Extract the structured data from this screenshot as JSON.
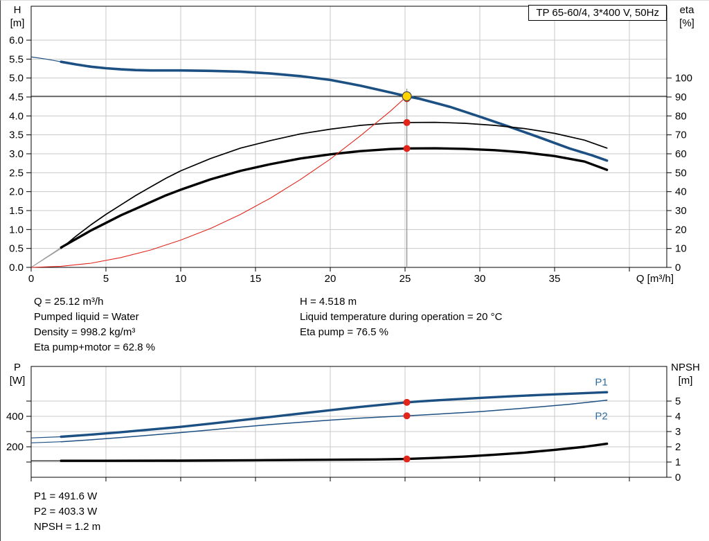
{
  "header": {
    "title_box": "TP 65-60/4, 3*400 V, 50Hz"
  },
  "colors": {
    "curve_blue": "#1c4f82",
    "label_blue": "#2d6ca2",
    "red": "#e1251b",
    "yellow": "#ffd400",
    "black": "#000000",
    "grid": "#c9c9c9",
    "lead": "#9a9a9a"
  },
  "top_chart": {
    "corner_left": {
      "title": "H",
      "unit": "[m]"
    },
    "corner_right": {
      "title": "eta",
      "unit": "[%]"
    },
    "x_axis_label": "Q [m³/h]",
    "left_ticks": [
      {
        "v": 6.0,
        "t": "6.0"
      },
      {
        "v": 5.5,
        "t": "5.5"
      },
      {
        "v": 5.0,
        "t": "5.0"
      },
      {
        "v": 4.5,
        "t": "4.5"
      },
      {
        "v": 4.0,
        "t": "4.0"
      },
      {
        "v": 3.5,
        "t": "3.5"
      },
      {
        "v": 3.0,
        "t": "3.0"
      },
      {
        "v": 2.5,
        "t": "2.5"
      },
      {
        "v": 2.0,
        "t": "2.0"
      },
      {
        "v": 1.5,
        "t": "1.5"
      },
      {
        "v": 1.0,
        "t": "1.0"
      },
      {
        "v": 0.5,
        "t": "0.5"
      },
      {
        "v": 0.0,
        "t": "0.0"
      }
    ],
    "right_ticks": [
      {
        "v": 100,
        "t": "100"
      },
      {
        "v": 90,
        "t": "90"
      },
      {
        "v": 80,
        "t": "80"
      },
      {
        "v": 70,
        "t": "70"
      },
      {
        "v": 60,
        "t": "60"
      },
      {
        "v": 50,
        "t": "50"
      },
      {
        "v": 40,
        "t": "40"
      },
      {
        "v": 30,
        "t": "30"
      },
      {
        "v": 20,
        "t": "20"
      },
      {
        "v": 10,
        "t": "10"
      },
      {
        "v": 0,
        "t": "0"
      }
    ],
    "x_ticks": [
      {
        "v": 0,
        "t": "0"
      },
      {
        "v": 5,
        "t": "5"
      },
      {
        "v": 10,
        "t": "10"
      },
      {
        "v": 15,
        "t": "15"
      },
      {
        "v": 20,
        "t": "20"
      },
      {
        "v": 25,
        "t": "25"
      },
      {
        "v": 30,
        "t": "30"
      },
      {
        "v": 35,
        "t": "35"
      }
    ]
  },
  "bottom_chart": {
    "corner_left": {
      "title": "P",
      "unit": "[W]"
    },
    "corner_right": {
      "title": "NPSH",
      "unit": "[m]"
    },
    "left_ticks": [
      {
        "v": 400,
        "t": "400"
      },
      {
        "v": 200,
        "t": "200"
      }
    ],
    "right_ticks": [
      {
        "v": 5,
        "t": "5"
      },
      {
        "v": 4,
        "t": "4"
      },
      {
        "v": 3,
        "t": "3"
      },
      {
        "v": 2,
        "t": "2"
      },
      {
        "v": 1,
        "t": "1"
      },
      {
        "v": 0,
        "t": "0"
      }
    ],
    "x_ticks": [],
    "curve_labels": [
      {
        "t": "P1",
        "q": 37.7,
        "axis": "P",
        "v": 625
      },
      {
        "t": "P2",
        "q": 37.7,
        "axis": "P",
        "v": 402
      }
    ]
  },
  "info_top": {
    "col1": [
      "Q = 25.12 m³/h",
      "Pumped liquid = Water",
      "Density = 998.2 kg/m³",
      "Eta pump+motor = 62.8 %"
    ],
    "col2": [
      "H = 4.518 m",
      "Liquid temperature during operation = 20 °C",
      "Eta pump = 76.5 %"
    ]
  },
  "info_bottom": [
    "P1 = 491.6 W",
    "P2 = 403.3 W",
    "NPSH = 1.2 m"
  ],
  "chart_data": [
    {
      "type": "line",
      "title": "TP 65-60/4, 3*400 V, 50Hz",
      "xlabel": "Q [m³/h]",
      "ylabel_left": "H [m]",
      "ylabel_right": "eta [%]",
      "x_range": [
        0,
        42.5
      ],
      "y_left_range": [
        0,
        6.9
      ],
      "y_right_range": [
        0,
        138
      ],
      "grid": true,
      "operating_point": {
        "Q_m3h": 25.12,
        "H_m": 4.518,
        "eta_pump_pct": 76.5,
        "eta_pump_motor_pct": 62.8
      },
      "crosshair": {
        "h_axis": "H",
        "h_value": 4.518,
        "v_value": 25.12
      },
      "duty_point": {
        "Q": 25.12,
        "H": 4.518
      },
      "markers": [
        {
          "q": 25.12,
          "axis": "eta",
          "v": 76.5
        },
        {
          "q": 25.12,
          "axis": "eta",
          "v": 62.8
        }
      ],
      "series": [
        {
          "name": "head-curve",
          "axis": "H",
          "color": "curve_blue",
          "w": 3.6,
          "thin_until": 2,
          "points": [
            [
              0,
              5.56
            ],
            [
              1,
              5.5
            ],
            [
              2,
              5.43
            ],
            [
              3,
              5.36
            ],
            [
              4,
              5.3
            ],
            [
              5,
              5.26
            ],
            [
              6,
              5.23
            ],
            [
              7,
              5.21
            ],
            [
              8,
              5.2
            ],
            [
              10,
              5.2
            ],
            [
              12,
              5.19
            ],
            [
              14,
              5.17
            ],
            [
              16,
              5.12
            ],
            [
              18,
              5.05
            ],
            [
              20,
              4.95
            ],
            [
              22,
              4.8
            ],
            [
              24,
              4.62
            ],
            [
              25.12,
              4.518
            ],
            [
              26,
              4.45
            ],
            [
              28,
              4.24
            ],
            [
              30,
              3.98
            ],
            [
              32,
              3.71
            ],
            [
              34,
              3.43
            ],
            [
              36,
              3.14
            ],
            [
              37.5,
              2.96
            ],
            [
              38.5,
              2.82
            ]
          ]
        },
        {
          "name": "eta-pump-curve",
          "axis": "eta",
          "color": "black",
          "w": 1.7,
          "lead_from_origin": true,
          "points": [
            [
              2,
              10
            ],
            [
              3,
              16.5
            ],
            [
              4,
              22.5
            ],
            [
              5,
              28
            ],
            [
              6,
              33
            ],
            [
              7,
              38
            ],
            [
              8,
              42.5
            ],
            [
              9,
              47
            ],
            [
              10,
              51
            ],
            [
              12,
              57.5
            ],
            [
              14,
              63
            ],
            [
              16,
              67
            ],
            [
              18,
              70.5
            ],
            [
              20,
              73
            ],
            [
              22,
              75
            ],
            [
              24,
              76.2
            ],
            [
              25.12,
              76.5
            ],
            [
              27,
              76.6
            ],
            [
              29,
              76.1
            ],
            [
              31,
              75
            ],
            [
              33,
              73.3
            ],
            [
              35,
              70.8
            ],
            [
              37,
              67.2
            ],
            [
              38.5,
              63
            ]
          ]
        },
        {
          "name": "eta-pump-motor-curve",
          "axis": "eta",
          "color": "black",
          "w": 3.4,
          "lead_from_origin": true,
          "points": [
            [
              2,
              10.5
            ],
            [
              3,
              15
            ],
            [
              4,
              19.5
            ],
            [
              5,
              23.5
            ],
            [
              6,
              27.5
            ],
            [
              7,
              31
            ],
            [
              8,
              34.5
            ],
            [
              9,
              38
            ],
            [
              10,
              41
            ],
            [
              12,
              46.5
            ],
            [
              14,
              51
            ],
            [
              16,
              54.5
            ],
            [
              18,
              57.5
            ],
            [
              20,
              59.7
            ],
            [
              22,
              61.4
            ],
            [
              24,
              62.5
            ],
            [
              25.12,
              62.8
            ],
            [
              27,
              62.9
            ],
            [
              29,
              62.6
            ],
            [
              31,
              61.9
            ],
            [
              33,
              60.7
            ],
            [
              35,
              58.8
            ],
            [
              37,
              55.9
            ],
            [
              38.5,
              51.5
            ]
          ]
        },
        {
          "name": "system-curve",
          "axis": "H",
          "color": "red",
          "w": 1.1,
          "points": [
            [
              0,
              0
            ],
            [
              2,
              0.03
            ],
            [
              4,
              0.11
            ],
            [
              6,
              0.26
            ],
            [
              8,
              0.46
            ],
            [
              10,
              0.72
            ],
            [
              12,
              1.03
            ],
            [
              14,
              1.4
            ],
            [
              16,
              1.83
            ],
            [
              18,
              2.32
            ],
            [
              20,
              2.86
            ],
            [
              22,
              3.47
            ],
            [
              24,
              4.12
            ],
            [
              25.12,
              4.518
            ]
          ]
        }
      ]
    },
    {
      "type": "line",
      "title": "",
      "xlabel": "Q [m³/h]",
      "ylabel_left": "P [W]",
      "ylabel_right": "NPSH [m]",
      "x_range": [
        0,
        42.5
      ],
      "y_left_range": [
        0,
        727
      ],
      "y_right_range": [
        0,
        7.27
      ],
      "grid": true,
      "operating_point": {
        "Q_m3h": 25.12,
        "P1_W": 491.6,
        "P2_W": 403.3,
        "NPSH_m": 1.2
      },
      "markers": [
        {
          "q": 25.12,
          "axis": "P",
          "v": 491.6
        },
        {
          "q": 25.12,
          "axis": "P",
          "v": 403.3
        },
        {
          "q": 25.12,
          "axis": "NPSH",
          "v": 1.2
        }
      ],
      "series": [
        {
          "name": "p1-curve",
          "axis": "P",
          "color": "curve_blue",
          "w": 3.4,
          "thin_until": 2,
          "points": [
            [
              0,
              258
            ],
            [
              2,
              266
            ],
            [
              4,
              280
            ],
            [
              6,
              296
            ],
            [
              8,
              313
            ],
            [
              10,
              331
            ],
            [
              12,
              352
            ],
            [
              14,
              374
            ],
            [
              16,
              396
            ],
            [
              18,
              418
            ],
            [
              20,
              440
            ],
            [
              22,
              462
            ],
            [
              24,
              481
            ],
            [
              25.12,
              491.6
            ],
            [
              26,
              498
            ],
            [
              28,
              510
            ],
            [
              30,
              521
            ],
            [
              32,
              531
            ],
            [
              34,
              540
            ],
            [
              36,
              548
            ],
            [
              38.5,
              558
            ]
          ]
        },
        {
          "name": "p2-curve",
          "axis": "P",
          "color": "curve_blue",
          "w": 1.5,
          "thin_until": 2,
          "points": [
            [
              0,
              226
            ],
            [
              2,
              233
            ],
            [
              4,
              246
            ],
            [
              6,
              261
            ],
            [
              8,
              277
            ],
            [
              10,
              293
            ],
            [
              12,
              311
            ],
            [
              14,
              329
            ],
            [
              16,
              346
            ],
            [
              18,
              361
            ],
            [
              20,
              375
            ],
            [
              22,
              388
            ],
            [
              24,
              398
            ],
            [
              25.12,
              403.3
            ],
            [
              26,
              408
            ],
            [
              28,
              419
            ],
            [
              30,
              431
            ],
            [
              32,
              446
            ],
            [
              34,
              462
            ],
            [
              36,
              479
            ],
            [
              38.5,
              506
            ]
          ]
        },
        {
          "name": "npsh-curve",
          "axis": "NPSH",
          "color": "black",
          "w": 3.4,
          "thin_until": 2,
          "points": [
            [
              0,
              1.08
            ],
            [
              2,
              1.08
            ],
            [
              5,
              1.08
            ],
            [
              10,
              1.09
            ],
            [
              15,
              1.12
            ],
            [
              20,
              1.15
            ],
            [
              23,
              1.17
            ],
            [
              25.12,
              1.2
            ],
            [
              27,
              1.27
            ],
            [
              29,
              1.36
            ],
            [
              31,
              1.48
            ],
            [
              33,
              1.62
            ],
            [
              35,
              1.8
            ],
            [
              37,
              2.0
            ],
            [
              38.5,
              2.2
            ]
          ]
        }
      ]
    }
  ]
}
